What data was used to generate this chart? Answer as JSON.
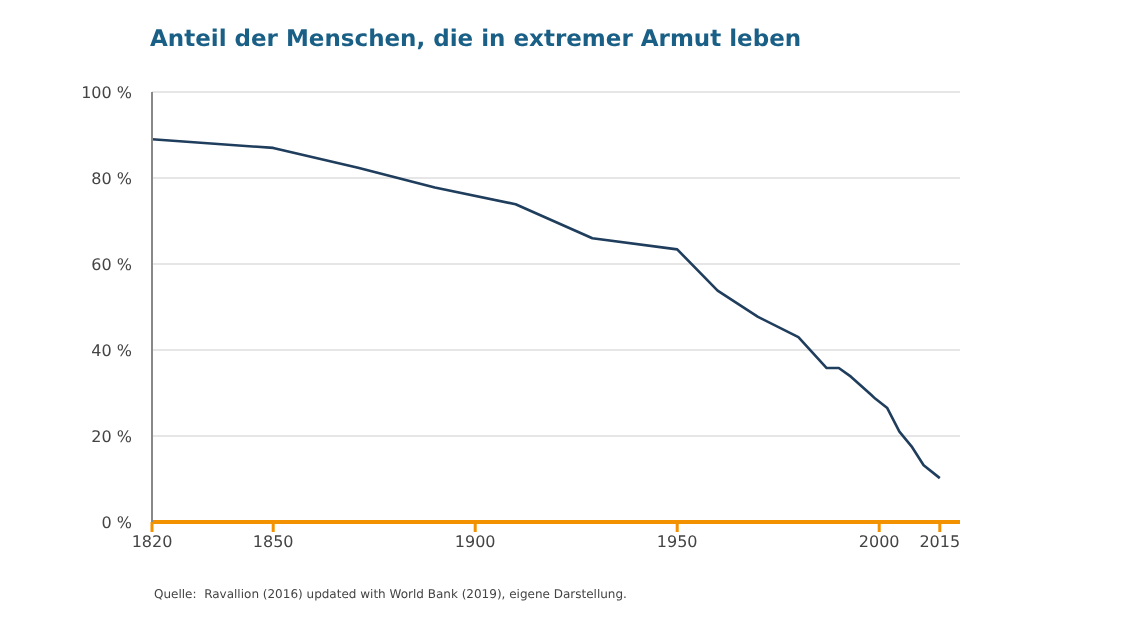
{
  "chart_data": {
    "type": "line",
    "title": "Anteil der Menschen, die in extremer Armut leben",
    "annotations": [
      "Quelle:  Ravallion (2016) updated with World Bank (2019), eigene Darstellung."
    ],
    "x": [
      1820,
      1850,
      1871,
      1890,
      1910,
      1929,
      1950,
      1960,
      1970,
      1980,
      1987,
      1990,
      1993,
      1998,
      1999,
      2002,
      2005,
      2008,
      2011,
      2015
    ],
    "series": [
      {
        "color": "#1f3d5c",
        "values": [
          89,
          87,
          82.4,
          77.8,
          73.9,
          66,
          63.4,
          53.8,
          47.7,
          43,
          35.8,
          35.8,
          33.8,
          29.6,
          28.7,
          26.5,
          21,
          17.6,
          13.2,
          10.2
        ]
      }
    ],
    "xlim": [
      1820,
      2020
    ],
    "xticks": [
      1820,
      1850,
      1900,
      1950,
      2000,
      2015
    ],
    "ylim": [
      0,
      100
    ],
    "yticks": [
      {
        "value": 0,
        "label": "0 %"
      },
      {
        "value": 20,
        "label": "20 %"
      },
      {
        "value": 40,
        "label": "40 %"
      },
      {
        "value": 60,
        "label": "60 %"
      },
      {
        "value": 80,
        "label": "80 %"
      },
      {
        "value": 100,
        "label": "100 %"
      }
    ],
    "grid": "y",
    "marker": "none",
    "line_style": "solid",
    "legend": false
  }
}
